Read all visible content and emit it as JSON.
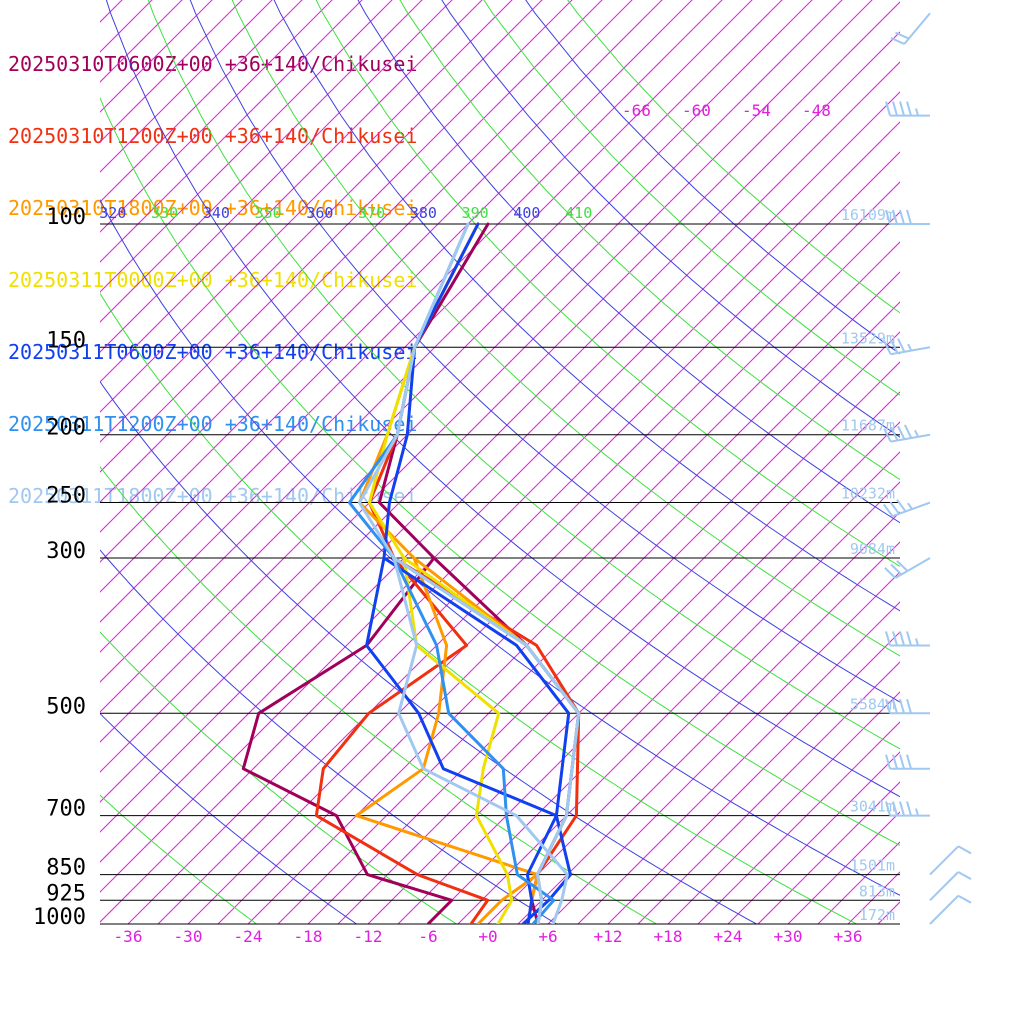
{
  "chart_data": {
    "type": "skew-t log-p",
    "legend": [
      {
        "label": "20250310T0600Z+00 +36+140/Chikusei",
        "color": "#a0005a"
      },
      {
        "label": "20250310T1200Z+00 +36+140/Chikusei",
        "color": "#f03010"
      },
      {
        "label": "20250310T1800Z+00 +36+140/Chikusei",
        "color": "#ff9900"
      },
      {
        "label": "20250311T0000Z+00 +36+140/Chikusei",
        "color": "#f0e000"
      },
      {
        "label": "20250311T0600Z+00 +36+140/Chikusei",
        "color": "#1040f0"
      },
      {
        "label": "20250311T1200Z+00 +36+140/Chikusei",
        "color": "#3090f0"
      },
      {
        "label": "20250311T1800Z+00 +36+140/Chikusei",
        "color": "#a0c8f0"
      }
    ],
    "pressure_levels": [
      "100",
      "150",
      "200",
      "250",
      "300",
      "500",
      "700",
      "850",
      "925",
      "1000"
    ],
    "height_labels": [
      "16109m",
      "13529m",
      "11687m",
      "10232m",
      "9084m",
      "5584m",
      "3041m",
      "1501m",
      "813m",
      "172m"
    ],
    "temperature_ticks": [
      "-36",
      "-30",
      "-24",
      "-18",
      "-12",
      "-6",
      "+0",
      "+6",
      "+12",
      "+18",
      "+24",
      "+30",
      "+36"
    ],
    "upper_temperature_labels": [
      "-66",
      "-60",
      "-54",
      "-48"
    ],
    "theta_labels": [
      "310",
      "320",
      "330",
      "340",
      "350",
      "360",
      "370",
      "380",
      "390",
      "400",
      "410"
    ],
    "theta_label_colors": [
      "#40e040",
      "#4040e0",
      "#40e040",
      "#4040e0",
      "#40e040",
      "#4040e0",
      "#40e040",
      "#4040e0",
      "#40e040",
      "#4040e0",
      "#40e040"
    ],
    "series": [
      {
        "name": "20250310T0600Z+00 +36+140/Chikusei",
        "color": "#a0005a",
        "temperature": [
          [
            1000,
            5
          ],
          [
            925,
            2
          ],
          [
            850,
            0
          ],
          [
            700,
            -3
          ],
          [
            500,
            -12
          ],
          [
            400,
            -24
          ],
          [
            300,
            -42
          ],
          [
            250,
            -53
          ],
          [
            200,
            -58
          ],
          [
            150,
            -65
          ],
          [
            100,
            -70
          ]
        ],
        "dewpoint": [
          [
            1000,
            -6
          ],
          [
            925,
            -6
          ],
          [
            850,
            -17
          ],
          [
            700,
            -26
          ],
          [
            600,
            -40
          ],
          [
            500,
            -44
          ],
          [
            400,
            -40
          ],
          [
            300,
            -42
          ]
        ]
      },
      {
        "name": "20250310T1200Z+00 +36+140/Chikusei",
        "color": "#f03010",
        "temperature": [
          [
            1000,
            5
          ],
          [
            925,
            3
          ],
          [
            850,
            0
          ],
          [
            700,
            -2
          ],
          [
            500,
            -12
          ],
          [
            400,
            -23
          ],
          [
            300,
            -46
          ],
          [
            250,
            -54
          ],
          [
            200,
            -58
          ],
          [
            150,
            -65
          ],
          [
            100,
            -71
          ]
        ],
        "dewpoint": [
          [
            1000,
            -1.7
          ],
          [
            925,
            -2.4
          ],
          [
            850,
            -12
          ],
          [
            700,
            -28
          ],
          [
            600,
            -32
          ],
          [
            500,
            -33
          ],
          [
            400,
            -30
          ],
          [
            300,
            -46
          ]
        ]
      },
      {
        "name": "20250310T1800Z+00 +36+140/Chikusei",
        "color": "#ff9900",
        "temperature": [
          [
            1000,
            4
          ],
          [
            925,
            2
          ],
          [
            850,
            0
          ],
          [
            700,
            -3
          ],
          [
            500,
            -12
          ],
          [
            400,
            -24
          ],
          [
            300,
            -44
          ],
          [
            250,
            -55
          ],
          [
            200,
            -59
          ],
          [
            150,
            -65
          ],
          [
            100,
            -71
          ]
        ],
        "dewpoint": [
          [
            1000,
            -1
          ],
          [
            925,
            -1
          ],
          [
            850,
            0
          ],
          [
            700,
            -24
          ],
          [
            600,
            -22
          ],
          [
            500,
            -26
          ],
          [
            400,
            -32
          ],
          [
            300,
            -44
          ]
        ]
      },
      {
        "name": "20250311T0000Z+00 +36+140/Chikusei",
        "color": "#f0e000",
        "temperature": [
          [
            1000,
            5
          ],
          [
            925,
            3
          ],
          [
            850,
            0
          ],
          [
            700,
            -3
          ],
          [
            500,
            -12
          ],
          [
            400,
            -24
          ],
          [
            300,
            -45
          ],
          [
            250,
            -54
          ],
          [
            200,
            -59
          ],
          [
            150,
            -65
          ],
          [
            100,
            -71
          ]
        ],
        "dewpoint": [
          [
            1000,
            1
          ],
          [
            925,
            0
          ],
          [
            850,
            -3
          ],
          [
            700,
            -12
          ],
          [
            600,
            -16
          ],
          [
            500,
            -20
          ],
          [
            400,
            -35
          ],
          [
            300,
            -45
          ]
        ]
      },
      {
        "name": "20250311T0600Z+00 +36+140/Chikusei",
        "color": "#1040f0",
        "temperature": [
          [
            1000,
            4
          ],
          [
            925,
            2
          ],
          [
            850,
            -1
          ],
          [
            700,
            -4
          ],
          [
            500,
            -13
          ],
          [
            400,
            -25
          ],
          [
            300,
            -47
          ],
          [
            250,
            -52
          ],
          [
            200,
            -57
          ],
          [
            150,
            -65
          ],
          [
            100,
            -71
          ]
        ],
        "dewpoint": [
          [
            1000,
            3.5
          ],
          [
            925,
            3.7
          ],
          [
            850,
            3.3
          ],
          [
            700,
            -4
          ],
          [
            600,
            -20
          ],
          [
            500,
            -28
          ],
          [
            400,
            -40
          ],
          [
            300,
            -47
          ]
        ]
      },
      {
        "name": "20250311T1200Z+00 +36+140/Chikusei",
        "color": "#3090f0",
        "temperature": [
          [
            1000,
            5
          ],
          [
            925,
            3
          ],
          [
            850,
            0
          ],
          [
            700,
            -3
          ],
          [
            500,
            -12
          ],
          [
            400,
            -24
          ],
          [
            300,
            -46
          ],
          [
            250,
            -56
          ],
          [
            200,
            -58
          ],
          [
            150,
            -65
          ],
          [
            100,
            -72
          ]
        ],
        "dewpoint": [
          [
            1000,
            4.5
          ],
          [
            925,
            4.2
          ],
          [
            850,
            -2
          ],
          [
            700,
            -9
          ],
          [
            600,
            -14
          ],
          [
            500,
            -25
          ],
          [
            400,
            -33
          ],
          [
            300,
            -46
          ]
        ]
      },
      {
        "name": "20250311T1800Z+00 +36+140/Chikusei",
        "color": "#a0c8f0",
        "temperature": [
          [
            1000,
            5
          ],
          [
            925,
            3
          ],
          [
            850,
            0
          ],
          [
            700,
            -3
          ],
          [
            500,
            -12
          ],
          [
            400,
            -24
          ],
          [
            300,
            -46
          ],
          [
            250,
            -55
          ],
          [
            200,
            -58
          ],
          [
            150,
            -65
          ],
          [
            100,
            -72
          ]
        ],
        "dewpoint": [
          [
            1000,
            6.5
          ],
          [
            925,
            5
          ],
          [
            850,
            3
          ],
          [
            700,
            -8
          ],
          [
            600,
            -22
          ],
          [
            500,
            -30
          ],
          [
            400,
            -35
          ],
          [
            300,
            -46
          ]
        ]
      }
    ],
    "wind_barbs": [
      {
        "pressure": 850,
        "speed_kt": 10,
        "direction": 45
      },
      {
        "pressure": 925,
        "speed_kt": 10,
        "direction": 45
      },
      {
        "pressure": 1000,
        "speed_kt": 10,
        "direction": 45
      },
      {
        "pressure": 700,
        "speed_kt": 45,
        "direction": 270
      },
      {
        "pressure": 600,
        "speed_kt": 40,
        "direction": 270
      },
      {
        "pressure": 500,
        "speed_kt": 40,
        "direction": 270
      },
      {
        "pressure": 400,
        "speed_kt": 45,
        "direction": 270
      },
      {
        "pressure": 300,
        "speed_kt": 30,
        "direction": 240
      },
      {
        "pressure": 250,
        "speed_kt": 35,
        "direction": 250
      },
      {
        "pressure": 200,
        "speed_kt": 45,
        "direction": 260
      },
      {
        "pressure": 150,
        "speed_kt": 35,
        "direction": 260
      },
      {
        "pressure": 100,
        "speed_kt": 40,
        "direction": 270
      },
      {
        "pressure": 70,
        "speed_kt": 45,
        "direction": 270
      },
      {
        "pressure": 50,
        "speed_kt": 20,
        "direction": 220
      }
    ],
    "colors": {
      "isotherm": "#e020e0",
      "dry_adiabat_green": "#40e040",
      "dry_adiabat_blue": "#4040e0",
      "isobar": "#000000",
      "height_label": "#a0c8f0",
      "barb": "#a0c8f0"
    }
  }
}
